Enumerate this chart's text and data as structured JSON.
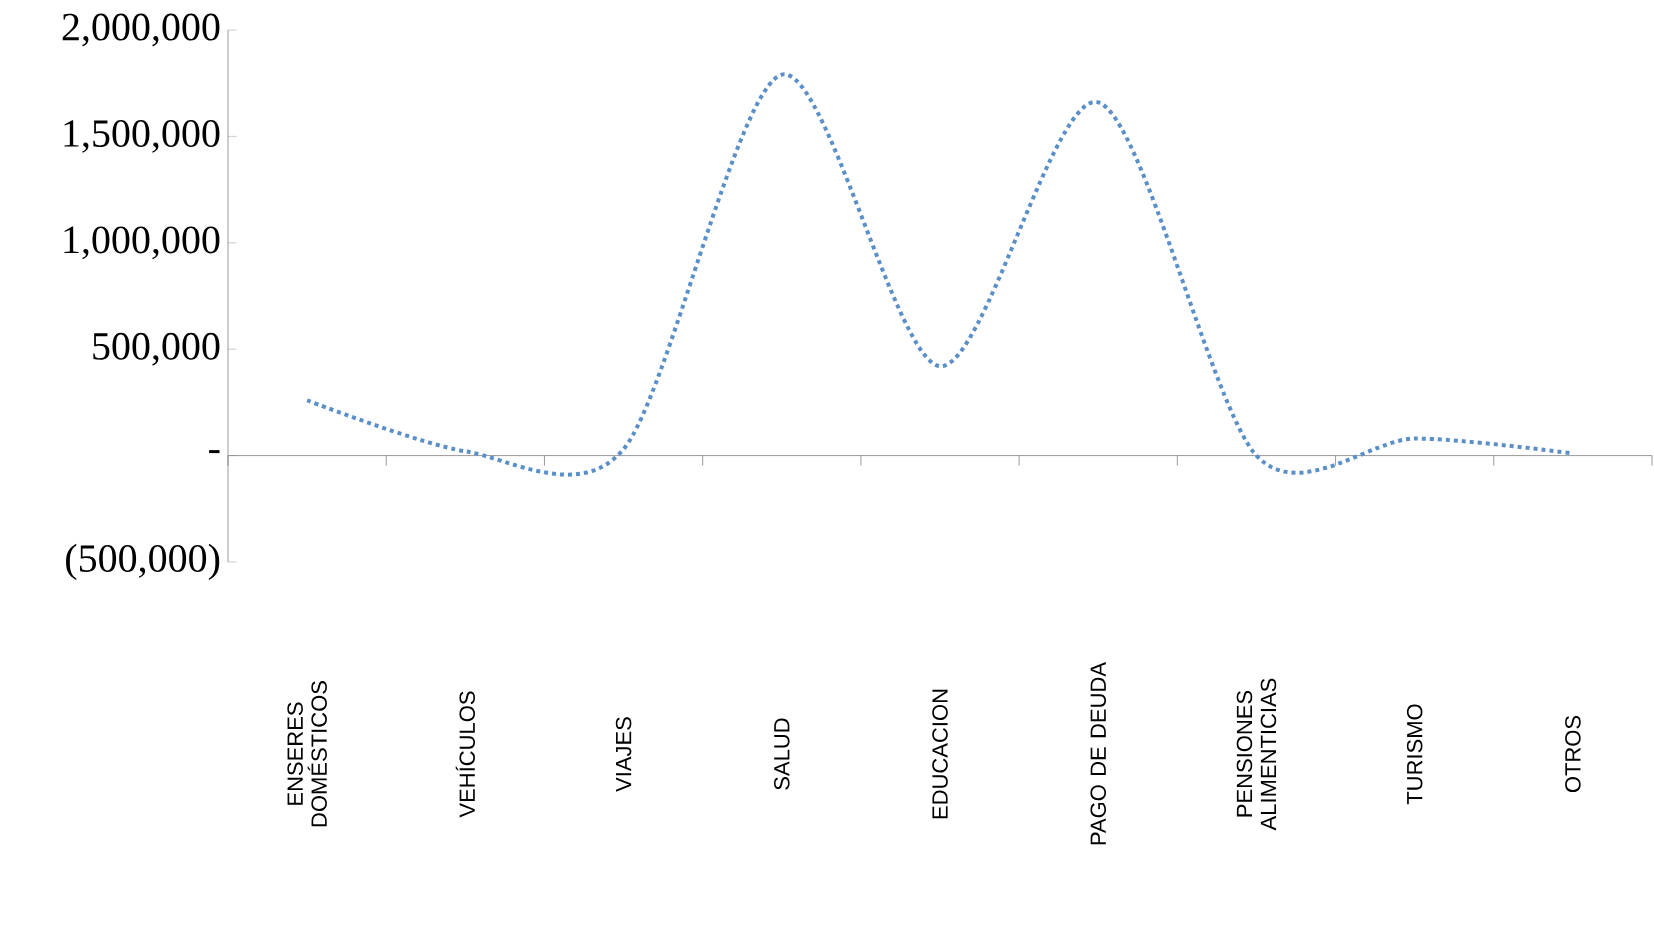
{
  "chart_data": {
    "type": "line",
    "categories": [
      "ENSERES DOMÉSTICOS",
      "VEHÍCULOS",
      "VIAJES",
      "SALUD",
      "EDUCACION",
      "PAGO DE DEUDA",
      "PENSIONES ALIMENTICIAS",
      "TURISMO",
      "OTROS"
    ],
    "values": [
      260000,
      20000,
      30000,
      1790000,
      420000,
      1660000,
      0,
      80000,
      10000
    ],
    "color": "#5b8fc7",
    "line_style": "dotted",
    "ylim": [
      -500000,
      2000000
    ],
    "yticks": [
      {
        "value": -500000,
        "label": "(500,000)"
      },
      {
        "value": 0,
        "label": "-"
      },
      {
        "value": 500000,
        "label": "500,000"
      },
      {
        "value": 1000000,
        "label": "1,000,000"
      },
      {
        "value": 1500000,
        "label": "1,500,000"
      },
      {
        "value": 2000000,
        "label": "2,000,000"
      }
    ]
  }
}
